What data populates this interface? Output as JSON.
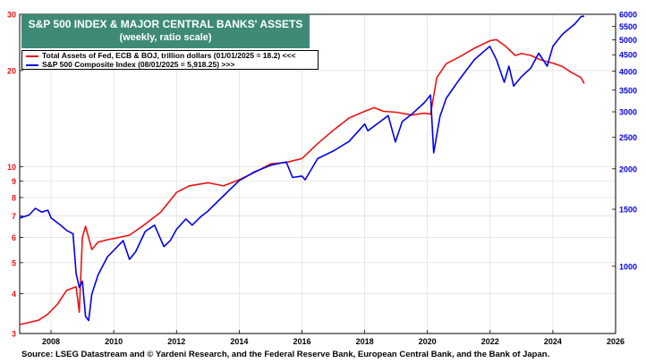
{
  "title": "S&P 500 INDEX & MAJOR CENTRAL BANKS' ASSETS",
  "subtitle": "(weekly, ratio scale)",
  "source": "Source: LSEG Datastream and © Yardeni Research, and the Federal Reserve Bank, European Central Bank, and the Bank of Japan.",
  "colors": {
    "assets": "#ee1111",
    "sp500": "#0000ee",
    "title_bg": "#3e8a76"
  },
  "chart_data": {
    "type": "line",
    "scale": "log",
    "grid": true,
    "x_ticks": [
      "2008",
      "2010",
      "2012",
      "2014",
      "2016",
      "2018",
      "2020",
      "2022",
      "2024",
      "2026"
    ],
    "xlim": [
      2007.0,
      2026.0
    ],
    "left_axis": {
      "ylim": [
        3,
        30
      ],
      "ticks": [
        "3",
        "4",
        "5",
        "6",
        "7",
        "8",
        "9",
        "10",
        "20",
        "30"
      ],
      "color": "#ee1111"
    },
    "right_axis": {
      "ylim": [
        620,
        6000
      ],
      "ticks": [
        "1000",
        "1500",
        "2000",
        "2500",
        "3000",
        "3500",
        "4000",
        "4500",
        "5000",
        "5500",
        "6000"
      ],
      "color": "#0000ee"
    },
    "series": [
      {
        "name": "Total Assets of Fed, ECB & BOJ, trillion dollars (01/01/2025 = 18.2) <<<",
        "axis": "left",
        "color": "#ee1111",
        "points": [
          [
            2007.0,
            3.2
          ],
          [
            2007.3,
            3.25
          ],
          [
            2007.6,
            3.3
          ],
          [
            2007.9,
            3.45
          ],
          [
            2008.2,
            3.7
          ],
          [
            2008.5,
            4.1
          ],
          [
            2008.8,
            4.2
          ],
          [
            2008.9,
            3.5
          ],
          [
            2009.0,
            6.0
          ],
          [
            2009.1,
            6.5
          ],
          [
            2009.3,
            5.5
          ],
          [
            2009.5,
            5.8
          ],
          [
            2009.8,
            5.9
          ],
          [
            2010.0,
            5.95
          ],
          [
            2010.5,
            6.1
          ],
          [
            2011.0,
            6.6
          ],
          [
            2011.5,
            7.2
          ],
          [
            2012.0,
            8.3
          ],
          [
            2012.4,
            8.7
          ],
          [
            2013.0,
            8.9
          ],
          [
            2013.5,
            8.7
          ],
          [
            2014.0,
            9.1
          ],
          [
            2014.5,
            9.6
          ],
          [
            2015.0,
            10.2
          ],
          [
            2015.5,
            10.3
          ],
          [
            2016.0,
            10.6
          ],
          [
            2016.5,
            11.8
          ],
          [
            2017.0,
            13.0
          ],
          [
            2017.5,
            14.2
          ],
          [
            2018.0,
            14.9
          ],
          [
            2018.3,
            15.3
          ],
          [
            2018.6,
            14.9
          ],
          [
            2019.0,
            14.8
          ],
          [
            2019.5,
            14.5
          ],
          [
            2019.9,
            14.7
          ],
          [
            2020.1,
            14.6
          ],
          [
            2020.3,
            19.0
          ],
          [
            2020.6,
            21.0
          ],
          [
            2021.0,
            22.0
          ],
          [
            2021.5,
            23.5
          ],
          [
            2022.0,
            24.8
          ],
          [
            2022.2,
            25.0
          ],
          [
            2022.5,
            23.8
          ],
          [
            2022.8,
            22.3
          ],
          [
            2023.0,
            22.6
          ],
          [
            2023.3,
            22.3
          ],
          [
            2023.6,
            21.6
          ],
          [
            2024.0,
            21.1
          ],
          [
            2024.3,
            20.6
          ],
          [
            2024.6,
            19.7
          ],
          [
            2024.9,
            19.0
          ],
          [
            2025.0,
            18.2
          ]
        ]
      },
      {
        "name": "S&P 500 Composite Index (08/01/2025 = 5,918.25) >>>",
        "axis": "right",
        "color": "#0000ee",
        "points": [
          [
            2007.0,
            1410
          ],
          [
            2007.3,
            1440
          ],
          [
            2007.5,
            1510
          ],
          [
            2007.7,
            1470
          ],
          [
            2007.9,
            1490
          ],
          [
            2008.0,
            1410
          ],
          [
            2008.3,
            1340
          ],
          [
            2008.5,
            1290
          ],
          [
            2008.7,
            1260
          ],
          [
            2008.8,
            950
          ],
          [
            2008.9,
            860
          ],
          [
            2009.0,
            900
          ],
          [
            2009.1,
            700
          ],
          [
            2009.2,
            680
          ],
          [
            2009.3,
            820
          ],
          [
            2009.5,
            940
          ],
          [
            2009.8,
            1070
          ],
          [
            2010.0,
            1120
          ],
          [
            2010.3,
            1200
          ],
          [
            2010.5,
            1050
          ],
          [
            2010.7,
            1110
          ],
          [
            2011.0,
            1280
          ],
          [
            2011.3,
            1340
          ],
          [
            2011.6,
            1150
          ],
          [
            2011.8,
            1200
          ],
          [
            2012.0,
            1300
          ],
          [
            2012.3,
            1400
          ],
          [
            2012.5,
            1340
          ],
          [
            2012.8,
            1430
          ],
          [
            2013.0,
            1480
          ],
          [
            2013.5,
            1650
          ],
          [
            2014.0,
            1840
          ],
          [
            2014.5,
            1960
          ],
          [
            2015.0,
            2050
          ],
          [
            2015.5,
            2100
          ],
          [
            2015.7,
            1880
          ],
          [
            2016.0,
            1900
          ],
          [
            2016.1,
            1850
          ],
          [
            2016.5,
            2150
          ],
          [
            2017.0,
            2270
          ],
          [
            2017.5,
            2430
          ],
          [
            2018.0,
            2750
          ],
          [
            2018.1,
            2620
          ],
          [
            2018.5,
            2800
          ],
          [
            2018.75,
            2920
          ],
          [
            2018.98,
            2420
          ],
          [
            2019.2,
            2800
          ],
          [
            2019.5,
            2950
          ],
          [
            2019.9,
            3200
          ],
          [
            2020.1,
            3380
          ],
          [
            2020.2,
            2240
          ],
          [
            2020.4,
            2900
          ],
          [
            2020.6,
            3300
          ],
          [
            2021.0,
            3750
          ],
          [
            2021.5,
            4350
          ],
          [
            2021.99,
            4780
          ],
          [
            2022.2,
            4350
          ],
          [
            2022.45,
            3700
          ],
          [
            2022.6,
            4150
          ],
          [
            2022.75,
            3600
          ],
          [
            2023.0,
            3850
          ],
          [
            2023.3,
            4100
          ],
          [
            2023.55,
            4550
          ],
          [
            2023.82,
            4150
          ],
          [
            2024.0,
            4780
          ],
          [
            2024.3,
            5200
          ],
          [
            2024.5,
            5400
          ],
          [
            2024.7,
            5600
          ],
          [
            2024.9,
            5900
          ],
          [
            2025.0,
            5920
          ]
        ]
      }
    ]
  }
}
